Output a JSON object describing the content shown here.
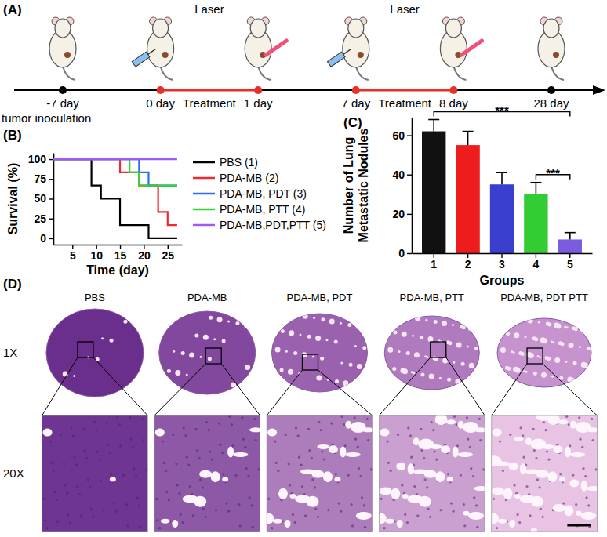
{
  "panel_labels": [
    "(A)",
    "(B)",
    "(C)",
    "(D)"
  ],
  "timeline": {
    "events": [
      "-7 day",
      "0 day",
      "1 day",
      "7 day",
      "8 day",
      "28 day"
    ],
    "phases": [
      {
        "start": "0 day",
        "end": "1 day",
        "label": "Treatment",
        "above": "Laser"
      },
      {
        "start": "7 day",
        "end": "8 day",
        "label": "Treatment",
        "above": "Laser"
      }
    ],
    "annotation": {
      "event": "-7 day",
      "text": "tumor inoculation"
    }
  },
  "chart_data": [
    {
      "type": "step",
      "x_label": "Time (day)",
      "y_label": "Survival (%)",
      "x": [
        1,
        9,
        11,
        15,
        17,
        19,
        21,
        23,
        25,
        27
      ],
      "series": [
        {
          "name": "PBS (1)",
          "color": "#000000",
          "values": [
            100,
            66.7,
            50,
            16.7,
            16.7,
            16.7,
            0,
            0,
            0,
            0
          ]
        },
        {
          "name": "PDA-MB (2)",
          "color": "#ee2b2b",
          "values": [
            100,
            100,
            100,
            83.3,
            83.3,
            66.7,
            66.7,
            33.3,
            16.7,
            16.7
          ]
        },
        {
          "name": "PDA-MB, PDT (3)",
          "color": "#2a6ef5",
          "values": [
            100,
            100,
            100,
            100,
            100,
            83.3,
            66.7,
            66.7,
            66.7,
            66.7
          ]
        },
        {
          "name": "PDA-MB, PTT (4)",
          "color": "#35d435",
          "values": [
            100,
            100,
            100,
            100,
            83.3,
            66.7,
            66.7,
            66.7,
            66.7,
            66.7
          ]
        },
        {
          "name": "PDA-MB,PDT,PTT (5)",
          "color": "#9d5cf2",
          "values": [
            100,
            100,
            100,
            100,
            100,
            100,
            100,
            100,
            100,
            100
          ]
        }
      ],
      "xlim": [
        1,
        28
      ],
      "ylim": [
        -8,
        108
      ],
      "xticks": [
        5,
        10,
        15,
        20,
        25
      ],
      "yticks": [
        0,
        25,
        50,
        75,
        100
      ],
      "legend": "right",
      "grid": false
    },
    {
      "type": "bar",
      "x_label": "Groups",
      "y_label": "Number of Lung\nMetastatic Nodules",
      "categories": [
        "1",
        "2",
        "3",
        "4",
        "5"
      ],
      "values": [
        62,
        55,
        35,
        30,
        7
      ],
      "errors": [
        6,
        7,
        6,
        6,
        3.5
      ],
      "colors": [
        "#111111",
        "#ee1c1c",
        "#3a3fd0",
        "#33cc33",
        "#7b5ce0"
      ],
      "ylim": [
        0,
        69
      ],
      "yticks": [
        0,
        20,
        40,
        60
      ],
      "annotations": [
        {
          "from": "1",
          "to": "5",
          "text": "***"
        },
        {
          "from": "4",
          "to": "5",
          "text": "***"
        }
      ],
      "grid": false
    }
  ],
  "histology": {
    "columns": [
      "PBS",
      "PDA-MB",
      "PDA-MB, PDT",
      "PDA-MB, PTT",
      "PDA-MB, PDT PTT"
    ],
    "rows": [
      "1X",
      "20X"
    ]
  }
}
